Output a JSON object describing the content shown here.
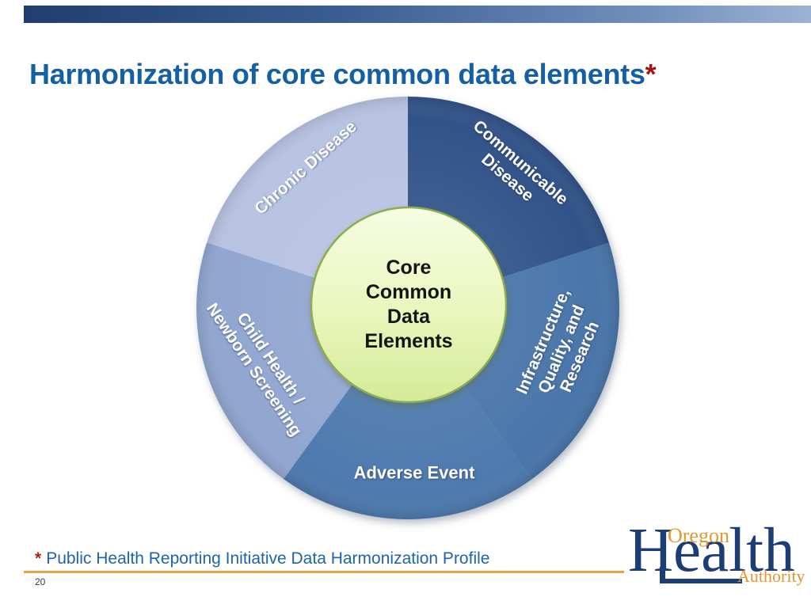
{
  "slide": {
    "title": {
      "text": "Harmonization of core common data elements",
      "asterisk": "*",
      "color": "#1560a5",
      "asterisk_color": "#9c1713"
    },
    "top_bar": {
      "gradient_left": "#1f3e6e",
      "gradient_mid": "#3a5d91",
      "gradient_right": "#9db2d3"
    },
    "footer": {
      "asterisk": "*",
      "asterisk_color": "#b02418",
      "note": "Public Health Reporting Initiative Data Harmonization Profile",
      "note_color": "#1f64a8",
      "rule_color": "#e8a23c",
      "page_number": "20"
    },
    "logo": {
      "oregon": "Oregon",
      "health": "Health",
      "authority": "Authority",
      "navy": "#1c3e74",
      "orange": "#e5972e"
    }
  },
  "chart_data": {
    "type": "pie",
    "title": "Core Common Data Elements",
    "description": "Ring diagram: five equal wedges around a central green hub",
    "legend": "none",
    "label_text_color": "#ffffff",
    "center_label_lines": [
      "Core",
      "Common",
      "Data",
      "Elements"
    ],
    "center_style": {
      "fill_top": "#f6fce2",
      "fill_mid": "#e9f6bc",
      "fill_bottom": "#d5ea97",
      "rim": "#8cab52",
      "text_color": "#141414"
    },
    "segments": [
      {
        "label": "Communicable Disease",
        "lines": [
          "Communicable",
          "Disease"
        ],
        "value": 20,
        "start_angle": 0,
        "end_angle": 72,
        "color": "#315389"
      },
      {
        "label": "Infrastructure, Quality, and Research",
        "lines": [
          "Infrastructure,",
          "Quality, and",
          "Research"
        ],
        "value": 20,
        "start_angle": 72,
        "end_angle": 144,
        "color": "#4a74a9"
      },
      {
        "label": "Adverse Event",
        "lines": [
          "Adverse Event"
        ],
        "value": 20,
        "start_angle": 144,
        "end_angle": 216,
        "color": "#4e79ad"
      },
      {
        "label": "Child Health / Newborn Screening",
        "lines": [
          "Child Health /",
          "Newborn Screening"
        ],
        "value": 20,
        "start_angle": 216,
        "end_angle": 288,
        "color": "#91a6d0"
      },
      {
        "label": "Chronic Disease",
        "lines": [
          "Chronic Disease"
        ],
        "value": 20,
        "start_angle": 288,
        "end_angle": 360,
        "color": "#b8c3e2"
      }
    ]
  }
}
